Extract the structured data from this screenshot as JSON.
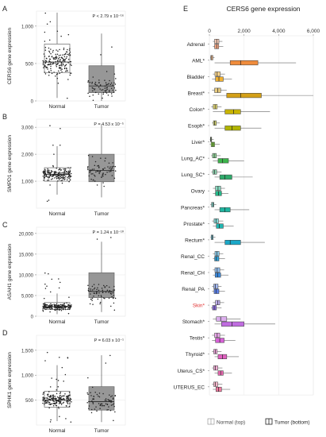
{
  "chart_data": [
    {
      "type": "box",
      "panel": "A",
      "ylabel": "CERS6 gene expression",
      "pvalue": "P < 2.79 x 10⁻¹⁶",
      "categories": [
        "Normal",
        "Tumor"
      ],
      "yticks": [
        0,
        500,
        1000
      ],
      "ytick_labels": [
        "0",
        "500",
        "1,000"
      ],
      "ylim": [
        0,
        1200
      ],
      "boxes": [
        {
          "name": "Normal",
          "min": 40,
          "q1": 380,
          "median": 520,
          "q3": 760,
          "max": 1180,
          "scatter": [
            30,
            1180
          ],
          "n": 180
        },
        {
          "name": "Tumor",
          "min": 0,
          "q1": 110,
          "median": 200,
          "q3": 470,
          "max": 900,
          "scatter": [
            0,
            900
          ],
          "n": 70
        }
      ]
    },
    {
      "type": "box",
      "panel": "B",
      "ylabel": "SMPD1 gene expression",
      "pvalue": "P = 4.53 x 10⁻⁵",
      "categories": [
        "Normal",
        "Tumor"
      ],
      "yticks": [
        1000,
        2000,
        3000
      ],
      "ytick_labels": [
        "1,000",
        "2,000",
        "3,000"
      ],
      "ylim": [
        0,
        3300
      ],
      "boxes": [
        {
          "name": "Normal",
          "min": 500,
          "q1": 1000,
          "median": 1250,
          "q3": 1500,
          "max": 2300,
          "scatter": [
            200,
            3100
          ],
          "n": 200
        },
        {
          "name": "Tumor",
          "min": 400,
          "q1": 980,
          "median": 1400,
          "q3": 2000,
          "max": 3100,
          "scatter": [
            200,
            3100
          ],
          "n": 70
        }
      ]
    },
    {
      "type": "box",
      "panel": "C",
      "ylabel": "ASAH1 gene expression",
      "pvalue": "P = 1.24 x 10⁻¹⁰",
      "categories": [
        "Normal",
        "Tumor"
      ],
      "yticks": [
        0,
        5000,
        10000,
        15000,
        20000
      ],
      "ytick_labels": [
        "0",
        "5,000",
        "10,000",
        "15,000",
        "20,000"
      ],
      "ylim": [
        0,
        21500
      ],
      "boxes": [
        {
          "name": "Normal",
          "min": 500,
          "q1": 1600,
          "median": 2300,
          "q3": 3300,
          "max": 5500,
          "scatter": [
            300,
            10500
          ],
          "n": 200
        },
        {
          "name": "Tumor",
          "min": 1000,
          "q1": 4500,
          "median": 6000,
          "q3": 10500,
          "max": 18000,
          "scatter": [
            800,
            20500
          ],
          "n": 70
        }
      ]
    },
    {
      "type": "box",
      "panel": "D",
      "ylabel": "SPHK1 gene expression",
      "pvalue": "P = 6.03 x 10⁻¹",
      "categories": [
        "Normal",
        "Tumor"
      ],
      "yticks": [
        500,
        1000,
        1500
      ],
      "ytick_labels": [
        "500",
        "1,000",
        "1,500"
      ],
      "ylim": [
        0,
        1800
      ],
      "boxes": [
        {
          "name": "Normal",
          "min": 80,
          "q1": 360,
          "median": 500,
          "q3": 680,
          "max": 1200,
          "scatter": [
            50,
            1750
          ],
          "n": 200
        },
        {
          "name": "Tumor",
          "min": 60,
          "q1": 300,
          "median": 470,
          "q3": 770,
          "max": 1400,
          "scatter": [
            50,
            1750
          ],
          "n": 70
        }
      ]
    },
    {
      "type": "box",
      "panel": "E",
      "orientation": "horizontal",
      "title": "CERS6 gene expression",
      "xticks": [
        0,
        2000,
        4000,
        6000
      ],
      "xtick_labels": [
        "0",
        "2,000",
        "4,000",
        "6,000"
      ],
      "xlim": [
        0,
        6000
      ],
      "legend": [
        "Normal (top)",
        "Tumor (bottom)"
      ],
      "highlight_color": "#e03030",
      "categories": [
        {
          "label": "Adrenal",
          "color": "#f4a582",
          "normal": [
            200,
            300,
            420,
            550,
            750
          ],
          "tumor": [
            200,
            300,
            420,
            540,
            800
          ]
        },
        {
          "label": "AML*",
          "color": "#f08c3c",
          "normal": [
            50,
            80,
            130,
            200,
            300
          ],
          "tumor": [
            300,
            1200,
            1800,
            2800,
            5000
          ]
        },
        {
          "label": "Bladder",
          "color": "#f0b030",
          "normal": [
            200,
            320,
            450,
            620,
            900
          ],
          "tumor": [
            150,
            350,
            550,
            800,
            1300
          ]
        },
        {
          "label": "Breast*",
          "color": "#d4a017",
          "normal": [
            150,
            300,
            480,
            650,
            1000
          ],
          "tumor": [
            200,
            1000,
            1800,
            3000,
            6000
          ]
        },
        {
          "label": "Colon*",
          "color": "#c8b400",
          "normal": [
            100,
            220,
            330,
            450,
            700
          ],
          "tumor": [
            200,
            900,
            1400,
            1800,
            3500
          ]
        },
        {
          "label": "Esoph*",
          "color": "#b0b400",
          "normal": [
            150,
            230,
            300,
            400,
            600
          ],
          "tumor": [
            300,
            900,
            1300,
            1800,
            3000
          ]
        },
        {
          "label": "Liver*",
          "color": "#7cc242",
          "normal": [
            30,
            60,
            90,
            130,
            250
          ],
          "tumor": [
            20,
            100,
            200,
            300,
            600
          ]
        },
        {
          "label": "Lung_AC*",
          "color": "#3cb44b",
          "normal": [
            100,
            180,
            280,
            400,
            650
          ],
          "tumor": [
            200,
            500,
            750,
            1100,
            2000
          ]
        },
        {
          "label": "Lung_SC*",
          "color": "#2eaa6a",
          "normal": [
            100,
            200,
            300,
            420,
            700
          ],
          "tumor": [
            300,
            600,
            900,
            1300,
            2500
          ]
        },
        {
          "label": "Ovary",
          "color": "#25b98a",
          "normal": [
            200,
            350,
            500,
            650,
            900
          ],
          "tumor": [
            200,
            350,
            520,
            700,
            1100
          ]
        },
        {
          "label": "Pancreas*",
          "color": "#1fb5a0",
          "normal": [
            50,
            120,
            200,
            260,
            400
          ],
          "tumor": [
            300,
            600,
            900,
            1200,
            2300
          ]
        },
        {
          "label": "Prostate*",
          "color": "#20b5b0",
          "normal": [
            150,
            270,
            380,
            520,
            800
          ],
          "tumor": [
            200,
            400,
            580,
            800,
            1400
          ]
        },
        {
          "label": "Rectum*",
          "color": "#1aa8c8",
          "normal": [
            60,
            100,
            160,
            220,
            350
          ],
          "tumor": [
            300,
            900,
            1200,
            1800,
            3200
          ]
        },
        {
          "label": "Renal_CC",
          "color": "#2c9fd6",
          "normal": [
            200,
            320,
            430,
            560,
            800
          ],
          "tumor": [
            200,
            300,
            400,
            550,
            900
          ]
        },
        {
          "label": "Renal_CH",
          "color": "#3a8be0",
          "normal": [
            200,
            320,
            450,
            600,
            850
          ],
          "tumor": [
            200,
            330,
            470,
            650,
            1100
          ]
        },
        {
          "label": "Renal_PA",
          "color": "#5a7fe6",
          "normal": [
            150,
            250,
            350,
            500,
            700
          ],
          "tumor": [
            150,
            270,
            380,
            550,
            900
          ]
        },
        {
          "label": "Skin*",
          "color": "#8e6fe0",
          "normal": [
            200,
            350,
            480,
            600,
            850
          ],
          "tumor": [
            100,
            180,
            280,
            400,
            700
          ]
        },
        {
          "label": "Stomach*",
          "color": "#c06ce0",
          "normal": [
            200,
            400,
            650,
            1000,
            1800
          ],
          "tumor": [
            300,
            700,
            1300,
            2000,
            3800
          ]
        },
        {
          "label": "Testis*",
          "color": "#d860d8",
          "normal": [
            150,
            300,
            450,
            600,
            900
          ],
          "tumor": [
            150,
            350,
            600,
            850,
            1500
          ]
        },
        {
          "label": "Thyroid*",
          "color": "#e060c0",
          "normal": [
            150,
            250,
            350,
            450,
            700
          ],
          "tumor": [
            300,
            500,
            750,
            1000,
            1700
          ]
        },
        {
          "label": "Uterus_CS*",
          "color": "#e868b0",
          "normal": [
            150,
            250,
            350,
            480,
            750
          ],
          "tumor": [
            300,
            500,
            650,
            800,
            1300
          ]
        },
        {
          "label": "UTERUS_EC",
          "color": "#f07aa0",
          "normal": [
            150,
            250,
            350,
            480,
            750
          ],
          "tumor": [
            200,
            380,
            520,
            700,
            1200
          ]
        }
      ]
    }
  ]
}
